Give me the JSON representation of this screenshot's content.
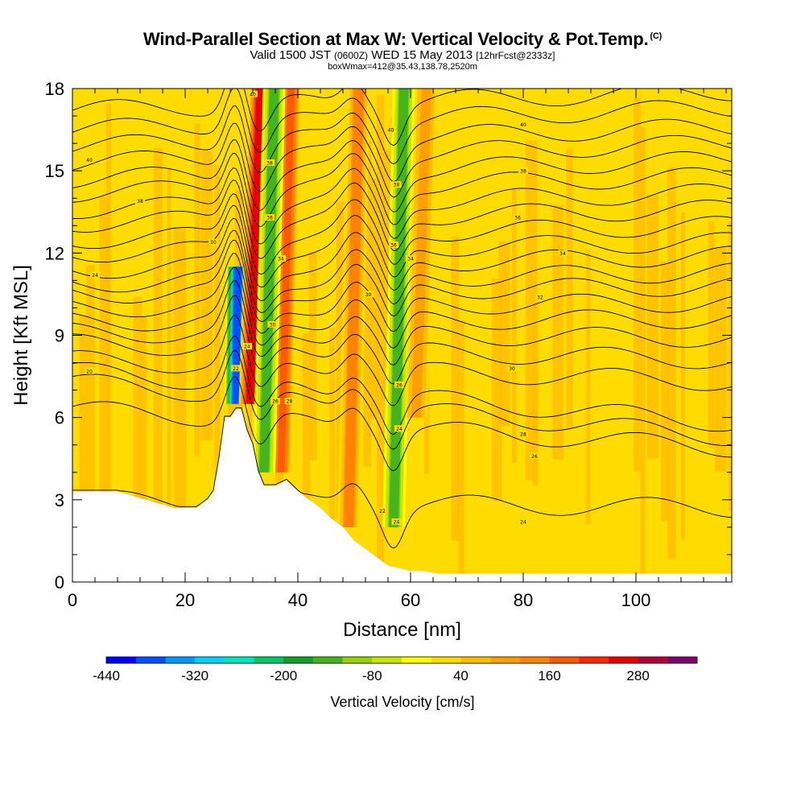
{
  "title": {
    "main": "Wind-Parallel Section at Max W: Vertical Velocity & Pot.Temp.",
    "copyright": "(C)",
    "valid_prefix": "Valid 1500 JST",
    "valid_utc": "(0600Z)",
    "valid_date": "WED 15 May 2013",
    "forecast": "[12hrFcst@2333z]",
    "box_info": "boxWmax=412@35.43,138.78,2520m"
  },
  "chart_data": {
    "type": "heatmap",
    "xlabel": "Distance [nm]",
    "ylabel": "Height [Kft MSL]",
    "xlim": [
      0,
      117
    ],
    "ylim": [
      0,
      18
    ],
    "x_ticks": [
      0,
      20,
      40,
      60,
      80,
      100
    ],
    "y_ticks": [
      0,
      3,
      6,
      9,
      12,
      15,
      18
    ],
    "colorbar": {
      "label": "Vertical Velocity [cm/s]",
      "min": -440,
      "max": 360,
      "step": 40,
      "tick_labels": [
        "-440",
        "-320",
        "-200",
        "-80",
        "40",
        "160",
        "280"
      ],
      "tick_values": [
        -440,
        -320,
        -200,
        -80,
        40,
        160,
        280
      ],
      "colors": [
        "#0000ff",
        "#0050ff",
        "#0096ff",
        "#00d2ff",
        "#00e6b4",
        "#00c864",
        "#14a028",
        "#46b41e",
        "#96d200",
        "#c8e600",
        "#ffff00",
        "#ffdc00",
        "#ffbe00",
        "#ffa000",
        "#ff8200",
        "#ff5a00",
        "#ff2800",
        "#e60000",
        "#b4003c",
        "#82006e"
      ]
    },
    "background_value_range": [
      0,
      80
    ],
    "terrain_profile": {
      "x": [
        0,
        8,
        13,
        18,
        22,
        24,
        25,
        26,
        27,
        28,
        29,
        30,
        31,
        32,
        33,
        34,
        36,
        38,
        40,
        42,
        44,
        46,
        48,
        50,
        52,
        54,
        56,
        58,
        60,
        62,
        65,
        117
      ],
      "height": [
        3.3,
        3.3,
        3.0,
        2.7,
        2.7,
        3.0,
        3.3,
        4.5,
        6.0,
        6.0,
        6.3,
        6.3,
        5.5,
        5.0,
        4.0,
        3.5,
        3.5,
        3.7,
        3.3,
        3.0,
        2.7,
        2.3,
        2.0,
        1.5,
        1.2,
        0.9,
        0.6,
        0.5,
        0.4,
        0.4,
        0.3,
        0.3
      ]
    },
    "features": [
      {
        "label": "strong downdraft",
        "x": 29,
        "y_range": [
          6.5,
          11.5
        ],
        "value": -440
      },
      {
        "label": "max updraft",
        "x": 31.5,
        "y_range": [
          6.5,
          18
        ],
        "value": 300
      },
      {
        "label": "updraft band",
        "x": 37,
        "y_range": [
          4,
          18
        ],
        "value": 200
      },
      {
        "label": "downdraft band",
        "x": 34,
        "y_range": [
          4,
          18
        ],
        "value": -160
      },
      {
        "label": "updraft band",
        "x": 49,
        "y_range": [
          2,
          18
        ],
        "value": 160
      },
      {
        "label": "downdraft band",
        "x": 57,
        "y_range": [
          2,
          18
        ],
        "value": -160
      },
      {
        "label": "updraft band",
        "x": 61,
        "y_range": [
          6,
          18
        ],
        "value": 120
      }
    ],
    "contours": {
      "variable": "potential temperature",
      "levels": 22,
      "y_base_left": [
        3.0,
        6.3,
        7.3,
        7.7,
        8.1,
        8.7,
        9.1,
        9.5,
        10.0,
        10.5,
        10.9,
        11.4,
        12.0,
        12.5,
        13.1,
        13.6,
        14.2,
        14.7,
        15.3,
        15.9,
        16.5,
        17.2
      ],
      "y_base_right": [
        2.7,
        4.9,
        5.3,
        5.8,
        7.3,
        8.1,
        8.9,
        9.6,
        10.2,
        10.8,
        11.3,
        11.9,
        12.4,
        13.0,
        13.6,
        14.2,
        14.8,
        15.4,
        16.0,
        16.6,
        17.3,
        17.9
      ],
      "labels": [
        {
          "x": 3,
          "y": 7.7,
          "text": "20"
        },
        {
          "x": 4,
          "y": 11.2,
          "text": "24"
        },
        {
          "x": 3,
          "y": 15.4,
          "text": "40"
        },
        {
          "x": 12,
          "y": 13.9,
          "text": "38"
        },
        {
          "x": 25,
          "y": 12.4,
          "text": "30"
        },
        {
          "x": 29,
          "y": 7.8,
          "text": "22"
        },
        {
          "x": 31,
          "y": 8.6,
          "text": "24"
        },
        {
          "x": 32,
          "y": 17.8,
          "text": "40"
        },
        {
          "x": 35,
          "y": 15.3,
          "text": "38"
        },
        {
          "x": 35,
          "y": 13.3,
          "text": "36"
        },
        {
          "x": 37,
          "y": 11.8,
          "text": "34"
        },
        {
          "x": 35.5,
          "y": 9.4,
          "text": "30"
        },
        {
          "x": 36,
          "y": 6.6,
          "text": "26"
        },
        {
          "x": 38.5,
          "y": 6.6,
          "text": "28"
        },
        {
          "x": 56.5,
          "y": 16.5,
          "text": "40"
        },
        {
          "x": 57.5,
          "y": 14.5,
          "text": "38"
        },
        {
          "x": 57,
          "y": 12.3,
          "text": "36"
        },
        {
          "x": 60,
          "y": 11.8,
          "text": "34"
        },
        {
          "x": 52.5,
          "y": 10.5,
          "text": "30"
        },
        {
          "x": 58,
          "y": 7.2,
          "text": "26"
        },
        {
          "x": 58,
          "y": 5.6,
          "text": "24"
        },
        {
          "x": 55,
          "y": 2.6,
          "text": "22"
        },
        {
          "x": 57.5,
          "y": 2.2,
          "text": "24"
        },
        {
          "x": 80,
          "y": 16.7,
          "text": "40"
        },
        {
          "x": 80,
          "y": 15.0,
          "text": "38"
        },
        {
          "x": 79,
          "y": 13.3,
          "text": "36"
        },
        {
          "x": 87,
          "y": 12.0,
          "text": "34"
        },
        {
          "x": 83,
          "y": 10.4,
          "text": "32"
        },
        {
          "x": 78,
          "y": 7.8,
          "text": "30"
        },
        {
          "x": 80,
          "y": 5.4,
          "text": "28"
        },
        {
          "x": 82,
          "y": 4.6,
          "text": "26"
        },
        {
          "x": 80,
          "y": 2.2,
          "text": "24"
        }
      ]
    }
  }
}
